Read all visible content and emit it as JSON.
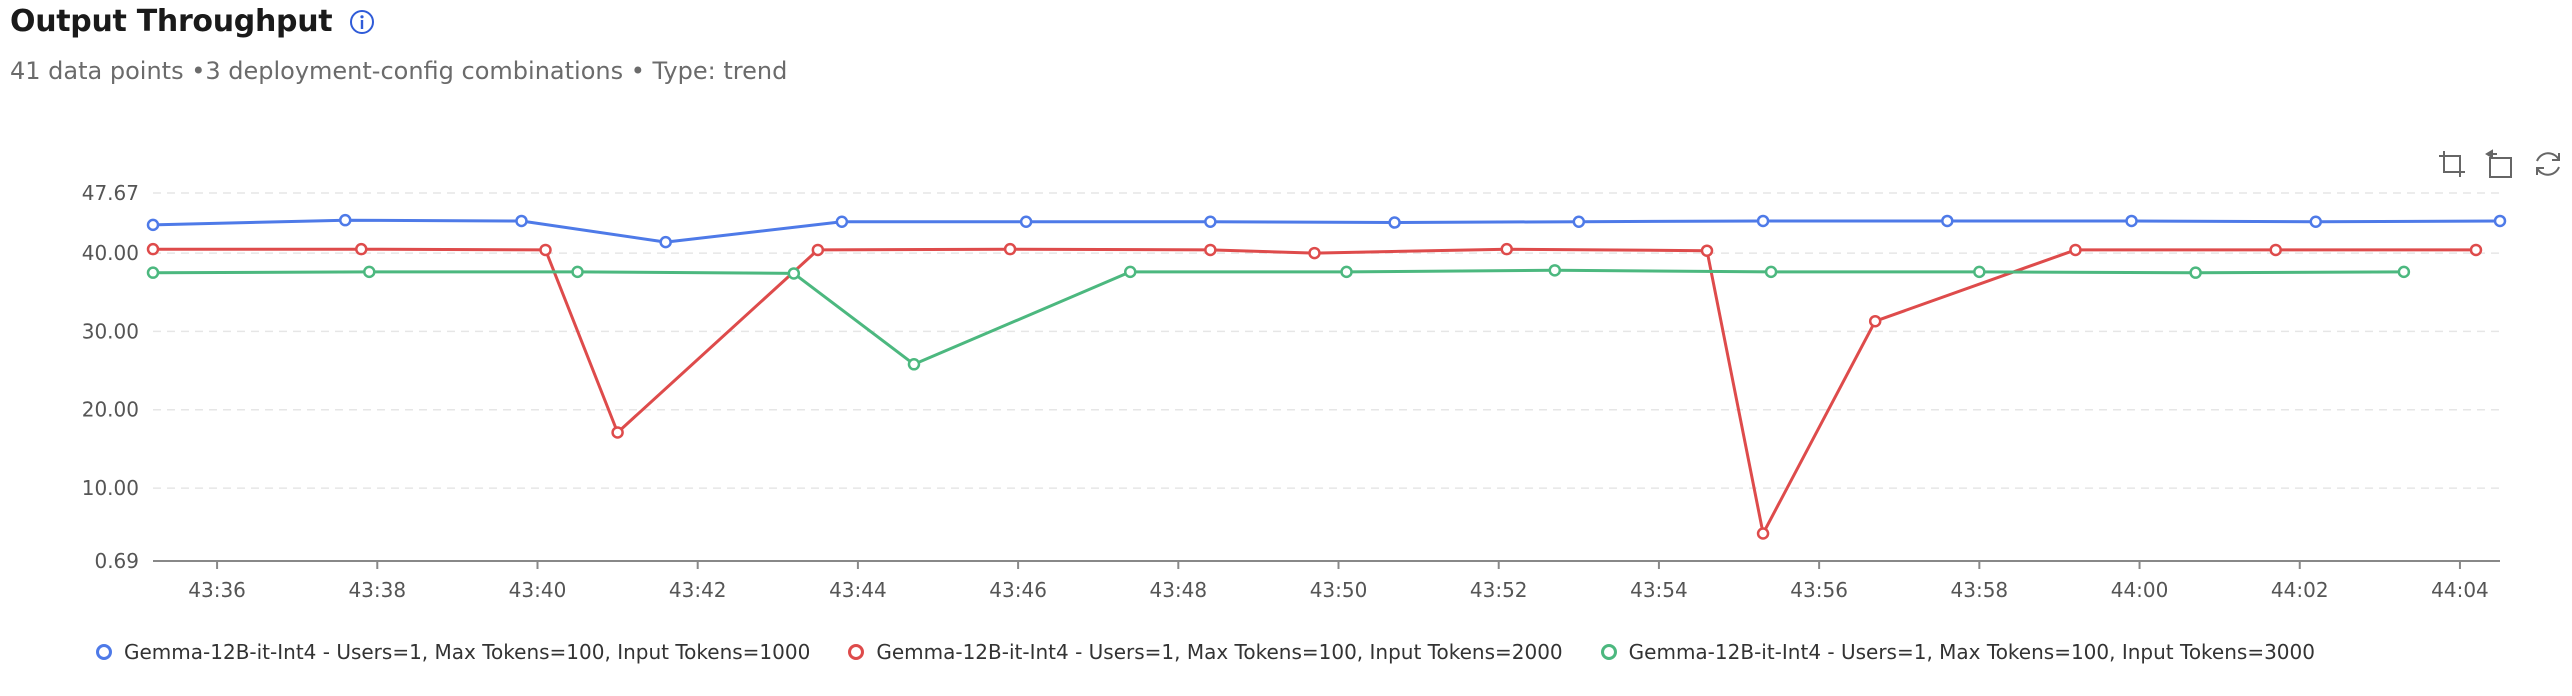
{
  "header": {
    "title": "Output Throughput",
    "subtitle": "41 data points •3 deployment-config combinations • Type: trend",
    "info_icon": "info-circle-icon"
  },
  "toolbox": {
    "icons": [
      "zoom-select-icon",
      "zoom-back-icon",
      "restore-icon"
    ]
  },
  "colors": {
    "series": [
      "#4e7ae8",
      "#de4b4b",
      "#4cb87f"
    ],
    "grid": "#e6e6e6",
    "axis": "#888888",
    "tick_text": "#555555"
  },
  "chart_data": {
    "type": "line",
    "title": "Output Throughput",
    "xlabel": "",
    "ylabel": "",
    "x_axis_type": "time",
    "x_range": [
      "43:35.2",
      "44:04.5"
    ],
    "ylim": [
      0.69,
      47.67
    ],
    "y_ticks": [
      "0.69",
      "10.00",
      "20.00",
      "30.00",
      "40.00",
      "47.67"
    ],
    "x_ticks": [
      "43:36",
      "43:38",
      "43:40",
      "43:42",
      "43:44",
      "43:46",
      "43:48",
      "43:50",
      "43:52",
      "43:54",
      "43:56",
      "43:58",
      "44:00",
      "44:02",
      "44:04"
    ],
    "grid": true,
    "legend_position": "bottom",
    "series": [
      {
        "name": "Gemma-12B-it-Int4 - Users=1, Max Tokens=100, Input Tokens=1000",
        "points": [
          [
            "43:35.2",
            43.6
          ],
          [
            "43:37.6",
            44.2
          ],
          [
            "43:39.8",
            44.1
          ],
          [
            "43:41.6",
            41.4
          ],
          [
            "43:43.8",
            44.0
          ],
          [
            "43:46.1",
            44.0
          ],
          [
            "43:48.4",
            44.0
          ],
          [
            "43:50.7",
            43.9
          ],
          [
            "43:53.0",
            44.0
          ],
          [
            "43:55.3",
            44.1
          ],
          [
            "43:57.6",
            44.1
          ],
          [
            "43:59.9",
            44.1
          ],
          [
            "44:02.2",
            44.0
          ],
          [
            "44:04.5",
            44.1
          ]
        ]
      },
      {
        "name": "Gemma-12B-it-Int4 - Users=1, Max Tokens=100, Input Tokens=2000",
        "points": [
          [
            "43:35.2",
            40.5
          ],
          [
            "43:37.8",
            40.5
          ],
          [
            "43:40.1",
            40.4
          ],
          [
            "43:41.0",
            17.1
          ],
          [
            "43:43.5",
            40.4
          ],
          [
            "43:45.9",
            40.5
          ],
          [
            "43:48.4",
            40.4
          ],
          [
            "43:49.7",
            40.0
          ],
          [
            "43:52.1",
            40.5
          ],
          [
            "43:54.6",
            40.3
          ],
          [
            "43:55.3",
            4.2
          ],
          [
            "43:56.7",
            31.3
          ],
          [
            "43:59.2",
            40.4
          ],
          [
            "44:01.7",
            40.4
          ],
          [
            "44:04.2",
            40.4
          ]
        ]
      },
      {
        "name": "Gemma-12B-it-Int4 - Users=1, Max Tokens=100, Input Tokens=3000",
        "points": [
          [
            "43:35.2",
            37.5
          ],
          [
            "43:37.9",
            37.6
          ],
          [
            "43:40.5",
            37.6
          ],
          [
            "43:43.2",
            37.4
          ],
          [
            "43:44.7",
            25.8
          ],
          [
            "43:47.4",
            37.6
          ],
          [
            "43:50.1",
            37.6
          ],
          [
            "43:52.7",
            37.8
          ],
          [
            "43:55.4",
            37.6
          ],
          [
            "43:58.0",
            37.6
          ],
          [
            "44:00.7",
            37.5
          ],
          [
            "44:03.3",
            37.6
          ]
        ]
      }
    ]
  }
}
